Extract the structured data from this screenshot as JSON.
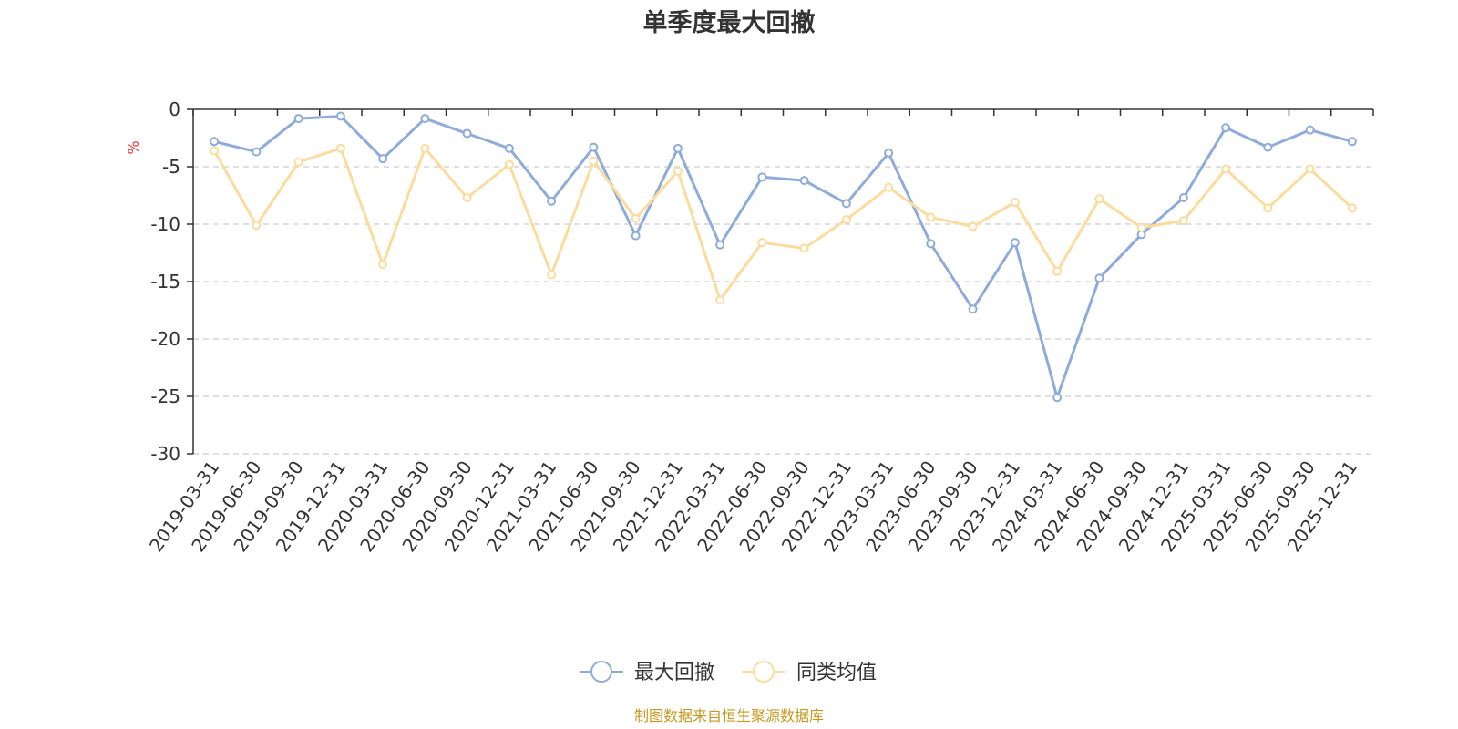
{
  "chart_data": {
    "type": "line",
    "title": "单季度最大回撤",
    "ylabel": "%",
    "ylim": [
      -30,
      0
    ],
    "yticks": [
      0,
      -5,
      -10,
      -15,
      -20,
      -25,
      -30
    ],
    "grid": true,
    "legend_position": "bottom-center",
    "categories": [
      "2019-03-31",
      "2019-06-30",
      "2019-09-30",
      "2019-12-31",
      "2020-03-31",
      "2020-06-30",
      "2020-09-30",
      "2020-12-31",
      "2021-03-31",
      "2021-06-30",
      "2021-09-30",
      "2021-12-31",
      "2022-03-31",
      "2022-06-30",
      "2022-09-30",
      "2022-12-31",
      "2023-03-31",
      "2023-06-30",
      "2023-09-30",
      "2023-12-31",
      "2024-03-31",
      "2024-06-30",
      "2024-09-30",
      "2024-12-31",
      "2025-03-31",
      "2025-06-30",
      "2025-09-30",
      "2025-12-31"
    ],
    "series": [
      {
        "name": "最大回撤",
        "color": "#8eacdb",
        "values": [
          -2.8,
          -3.7,
          -0.8,
          -0.6,
          -4.3,
          -0.8,
          -2.1,
          -3.4,
          -8.0,
          -3.3,
          -11.0,
          -3.4,
          -11.8,
          -5.9,
          -6.2,
          -8.2,
          -3.8,
          -11.7,
          -17.4,
          -11.6,
          -25.1,
          -14.7,
          -10.9,
          -7.7,
          -1.6,
          -3.3,
          -1.8,
          -2.8
        ]
      },
      {
        "name": "同类均值",
        "color": "#fbdc9c",
        "values": [
          -3.6,
          -10.1,
          -4.6,
          -3.4,
          -13.5,
          -3.4,
          -7.7,
          -4.8,
          -14.4,
          -4.5,
          -9.5,
          -5.4,
          -16.6,
          -11.6,
          -12.1,
          -9.6,
          -6.8,
          -9.4,
          -10.2,
          -8.1,
          -14.1,
          -7.8,
          -10.3,
          -9.7,
          -5.2,
          -8.6,
          -5.2,
          -8.6
        ]
      }
    ]
  },
  "source": "制图数据来自恒生聚源数据库",
  "colors": {
    "title": "#333333",
    "axis": "#333333",
    "grid": "#cccccc",
    "unit": "#e53935",
    "source": "#c8981e"
  }
}
